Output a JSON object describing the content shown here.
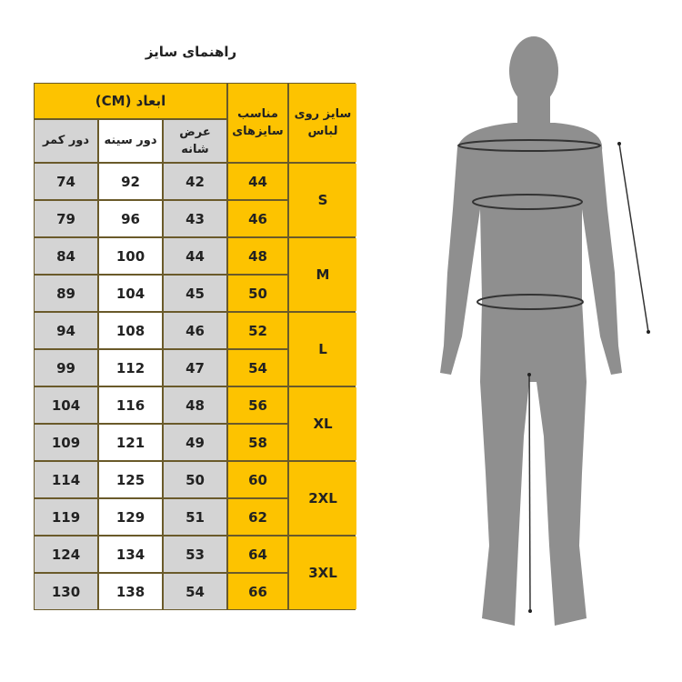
{
  "title": "راهنمای سایز",
  "table": {
    "dimensions_header": "ابعاد (CM)",
    "suitable_sizes_header": "مناسب سایزهای",
    "garment_size_header": "سایز روی لباس",
    "columns": {
      "waist": "دور کمر",
      "chest": "دور سینه",
      "shoulder": "عرض شانه"
    },
    "sizes": [
      "S",
      "M",
      "L",
      "XL",
      "2XL",
      "3XL"
    ],
    "rows": [
      {
        "waist": "74",
        "chest": "92",
        "shoulder": "42",
        "suit": "44"
      },
      {
        "waist": "79",
        "chest": "96",
        "shoulder": "43",
        "suit": "46"
      },
      {
        "waist": "84",
        "chest": "100",
        "shoulder": "44",
        "suit": "48"
      },
      {
        "waist": "89",
        "chest": "104",
        "shoulder": "45",
        "suit": "50"
      },
      {
        "waist": "94",
        "chest": "108",
        "shoulder": "46",
        "suit": "52"
      },
      {
        "waist": "99",
        "chest": "112",
        "shoulder": "47",
        "suit": "54"
      },
      {
        "waist": "104",
        "chest": "116",
        "shoulder": "48",
        "suit": "56"
      },
      {
        "waist": "109",
        "chest": "121",
        "shoulder": "49",
        "suit": "58"
      },
      {
        "waist": "114",
        "chest": "125",
        "shoulder": "50",
        "suit": "60"
      },
      {
        "waist": "119",
        "chest": "129",
        "shoulder": "51",
        "suit": "62"
      },
      {
        "waist": "124",
        "chest": "134",
        "shoulder": "53",
        "suit": "64"
      },
      {
        "waist": "130",
        "chest": "138",
        "shoulder": "54",
        "suit": "66"
      }
    ]
  },
  "colors": {
    "accent": "#fdc300",
    "gray_cell": "#d4d4d4",
    "border": "#6a5a2a",
    "silhouette": "#8f8f8f"
  },
  "figure": {
    "icon": "human-silhouette-icon"
  }
}
